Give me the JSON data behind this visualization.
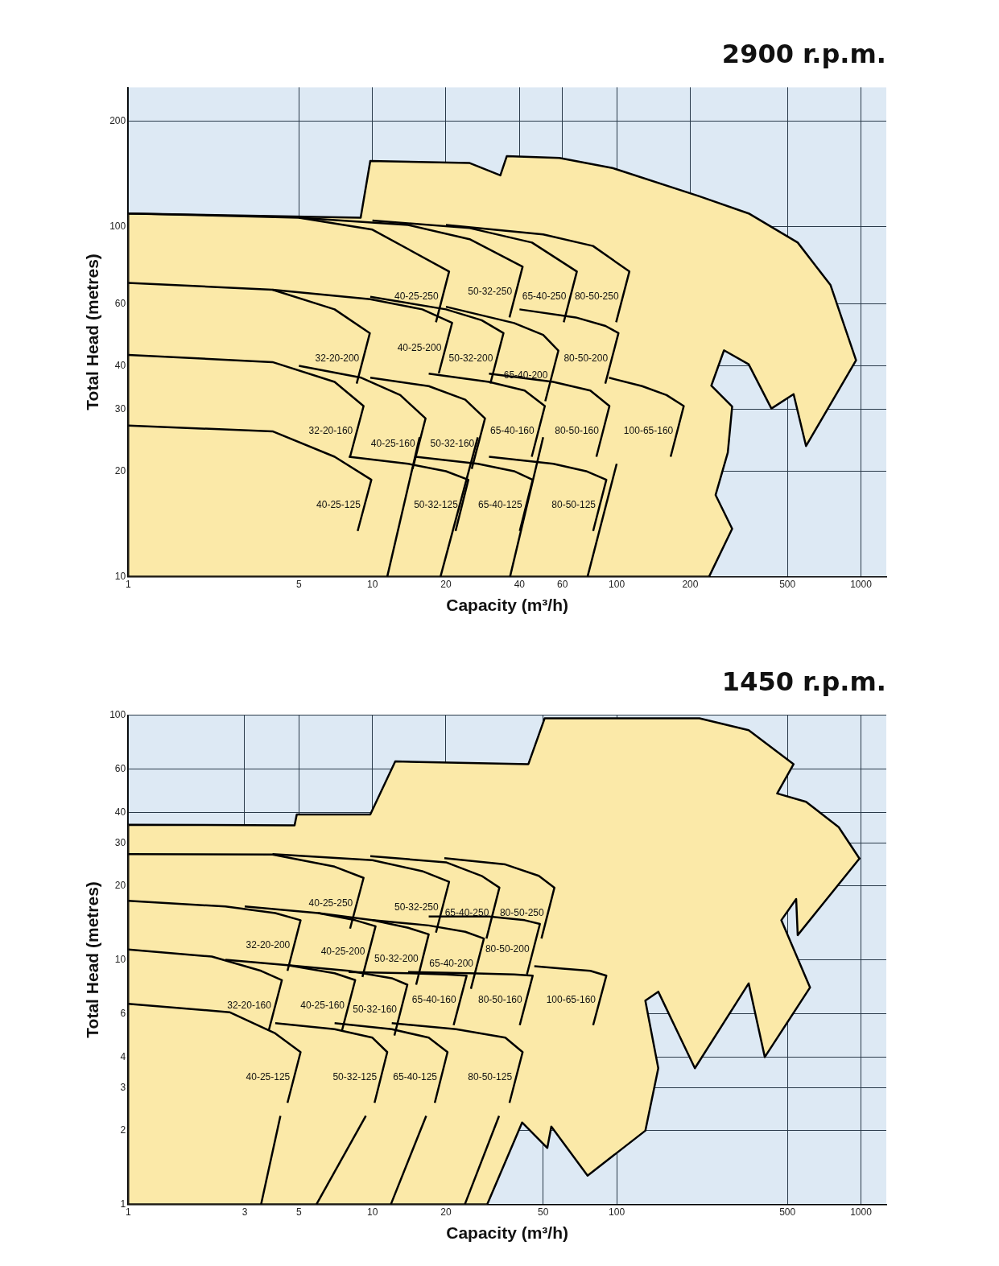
{
  "chart_data": [
    {
      "type": "line",
      "title": "2900 r.p.m.",
      "xlabel": "Capacity (m³/h)",
      "ylabel": "Total Head (metres)",
      "log": "xy",
      "xlim": [
        1,
        1270
      ],
      "ylim": [
        10,
        250
      ],
      "xticks": [
        1,
        5,
        10,
        20,
        40,
        60,
        100,
        200,
        500,
        1000
      ],
      "yticks": [
        10,
        20,
        30,
        40,
        60,
        100,
        200
      ],
      "grid": true,
      "legend": false,
      "marker": "none",
      "line_style": "solid",
      "series": [
        {
          "type": "area",
          "color": "#fbe9a8",
          "x": [
            1,
            8.95,
            9.8,
            24.9,
            33.4,
            35.5,
            58.3,
            96,
            218,
            347,
            551,
            751,
            955,
            596,
            530,
            430,
            347,
            275,
            244,
            297,
            285,
            254,
            297,
            239,
            1,
            1
          ],
          "values": [
            109,
            106,
            154,
            152,
            140,
            159,
            157,
            147,
            122,
            109,
            90,
            68,
            41.5,
            23.6,
            33.2,
            30.2,
            40.4,
            44.3,
            35.1,
            30.6,
            22.6,
            17.1,
            13.7,
            10,
            10,
            109
          ]
        },
        {
          "name": "40-25-250",
          "color": "#000000",
          "x": [
            1,
            5,
            10,
            20.6,
            18.2
          ],
          "values": [
            109,
            106,
            98,
            74.4,
            53.3
          ]
        },
        {
          "name": "50-32-250",
          "color": "#000000",
          "x": [
            5,
            14,
            25,
            41.2,
            36.4
          ],
          "values": [
            106,
            101,
            92,
            76.8,
            55
          ]
        },
        {
          "name": "65-40-250",
          "color": "#000000",
          "x": [
            10,
            25,
            45,
            68.7,
            60.7
          ],
          "values": [
            104,
            99,
            90,
            74.4,
            53.3
          ]
        },
        {
          "name": "80-50-250",
          "color": "#000000",
          "x": [
            20,
            50,
            80,
            112.7,
            99.5
          ],
          "values": [
            101,
            95,
            88,
            74.4,
            53.3
          ]
        },
        {
          "name": "32-20-200",
          "color": "#000000",
          "x": [
            1,
            3.9,
            7,
            9.76,
            8.62
          ],
          "values": [
            69,
            66,
            58,
            49.6,
            35.6
          ]
        },
        {
          "name": "40-25-200",
          "color": "#000000",
          "x": [
            3.9,
            9.8,
            16,
            21.2,
            18.7
          ],
          "values": [
            66,
            62,
            58,
            53.1,
            38.1
          ]
        },
        {
          "name": "50-32-200",
          "color": "#000000",
          "x": [
            9.8,
            20,
            28,
            34.4,
            30.4
          ],
          "values": [
            63,
            58,
            54,
            49.6,
            35.6
          ]
        },
        {
          "name": "65-40-200",
          "color": "#000000",
          "x": [
            20,
            38,
            50,
            57.7,
            51
          ],
          "values": [
            59,
            53,
            49,
            44.2,
            31.7
          ]
        },
        {
          "name": "80-50-200",
          "color": "#000000",
          "x": [
            40,
            68,
            90,
            101.7,
            89.8
          ],
          "values": [
            58,
            55,
            52,
            49.6,
            35.6
          ]
        },
        {
          "name": "32-20-160",
          "color": "#000000",
          "x": [
            1,
            3.9,
            7,
            9.2,
            8.1
          ],
          "values": [
            43,
            41,
            36,
            30.7,
            22
          ]
        },
        {
          "name": "40-25-160",
          "color": "#000000",
          "x": [
            5,
            9,
            13,
            16.5,
            14.6
          ],
          "values": [
            40,
            37,
            33,
            28.3,
            20.3
          ]
        },
        {
          "name": "50-32-160",
          "color": "#000000",
          "x": [
            9.8,
            17,
            24,
            28.9,
            25.5
          ],
          "values": [
            37,
            35,
            32,
            28.3,
            20.3
          ]
        },
        {
          "name": "65-40-160",
          "color": "#000000",
          "x": [
            17,
            30,
            42,
            50.8,
            44.9
          ],
          "values": [
            38,
            36,
            34,
            30.7,
            22
          ]
        },
        {
          "name": "80-50-160",
          "color": "#000000",
          "x": [
            30,
            55,
            78,
            93.4,
            82.6
          ],
          "values": [
            38,
            36,
            34,
            30.7,
            22
          ]
        },
        {
          "name": "100-65-160",
          "color": "#000000",
          "x": [
            93,
            127,
            160,
            188.2,
            166.3
          ],
          "values": [
            37,
            35,
            33,
            30.7,
            22
          ]
        },
        {
          "name": "40-25-125",
          "color": "#000000",
          "x": [
            1,
            3.9,
            7,
            9.9,
            8.7
          ],
          "values": [
            27,
            26,
            22,
            18.9,
            13.5
          ]
        },
        {
          "name": "50-32-125",
          "color": "#000000",
          "x": [
            8,
            14,
            20,
            24.7,
            21.9
          ],
          "values": [
            22,
            21,
            20,
            18.9,
            13.5
          ]
        },
        {
          "name": "65-40-125",
          "color": "#000000",
          "x": [
            15,
            27,
            38,
            45.3,
            40.1
          ],
          "values": [
            22,
            21,
            20,
            18.9,
            13.5
          ]
        },
        {
          "name": "80-50-125",
          "color": "#000000",
          "x": [
            30,
            55,
            75,
            90.7,
            80.1
          ],
          "values": [
            22,
            21,
            20,
            18.9,
            13.5
          ]
        },
        {
          "color": "#000000",
          "x": [
            11.5,
            15.6
          ],
          "values": [
            10,
            25
          ]
        },
        {
          "color": "#000000",
          "x": [
            19,
            27
          ],
          "values": [
            10,
            25
          ]
        },
        {
          "color": "#000000",
          "x": [
            36.6,
            50
          ],
          "values": [
            10,
            25
          ]
        },
        {
          "color": "#000000",
          "x": [
            76,
            100
          ],
          "values": [
            10,
            21
          ]
        }
      ]
    },
    {
      "type": "line",
      "title": "1450 r.p.m.",
      "xlabel": "Capacity (m³/h)",
      "ylabel": "Total Head (metres)",
      "log": "xy",
      "xlim": [
        1,
        1270
      ],
      "ylim": [
        1,
        100
      ],
      "xticks": [
        1,
        3,
        5,
        10,
        20,
        50,
        100,
        500,
        1000
      ],
      "yticks": [
        1,
        2,
        3,
        4,
        6,
        10,
        20,
        30,
        40,
        60,
        100
      ],
      "grid": true,
      "legend": false,
      "marker": "none",
      "line_style": "solid",
      "series": [
        {
          "type": "area",
          "color": "#fbe9a8",
          "x": [
            1,
            4.8,
            4.9,
            9.8,
            12.4,
            43.5,
            50.7,
            218,
            347,
            530,
            454,
            596,
            811,
            986,
            551,
            543,
            472,
            619,
            404,
            347,
            209,
            148,
            131,
            148,
            131,
            76,
            54,
            52,
            41,
            29.5,
            1,
            1
          ],
          "values": [
            35.6,
            35.4,
            39.2,
            39.2,
            64.6,
            63,
            96.9,
            96.9,
            86.7,
            63,
            47.8,
            44.2,
            34.8,
            25.9,
            12.6,
            17.7,
            14.5,
            7.7,
            4,
            8,
            3.6,
            7.4,
            6.8,
            3.6,
            2,
            1.31,
            2.08,
            1.7,
            2.16,
            1,
            1,
            35.6
          ]
        },
        {
          "name": "40-25-250",
          "color": "#000000",
          "x": [
            1,
            3.9,
            7,
            9.2,
            8.1
          ],
          "values": [
            27,
            26.9,
            24,
            21.6,
            13.4
          ]
        },
        {
          "name": "50-32-250",
          "color": "#000000",
          "x": [
            3.9,
            10,
            16,
            20.6,
            18.2
          ],
          "values": [
            27,
            25.5,
            23,
            20.8,
            12.9
          ]
        },
        {
          "name": "65-40-250",
          "color": "#000000",
          "x": [
            9.8,
            20,
            28,
            33.1,
            29.3
          ],
          "values": [
            26.5,
            25,
            22,
            19.7,
            12.2
          ]
        },
        {
          "name": "80-50-250",
          "color": "#000000",
          "x": [
            19.7,
            35,
            48,
            55.6,
            49.2
          ],
          "values": [
            26,
            24.5,
            22,
            19.7,
            12.2
          ]
        },
        {
          "name": "32-20-200",
          "color": "#000000",
          "x": [
            1,
            2.5,
            4,
            5.08,
            4.49
          ],
          "values": [
            17.4,
            16.5,
            15.5,
            14.5,
            9
          ]
        },
        {
          "name": "40-25-200",
          "color": "#000000",
          "x": [
            3,
            6,
            8.5,
            10.3,
            9.1
          ],
          "values": [
            16.5,
            15.5,
            14.5,
            13.7,
            8.5
          ]
        },
        {
          "name": "50-32-200",
          "color": "#000000",
          "x": [
            6,
            10,
            14,
            17,
            15.1
          ],
          "values": [
            15.5,
            14.5,
            13.5,
            12.7,
            7.9
          ]
        },
        {
          "name": "65-40-200",
          "color": "#000000",
          "x": [
            10,
            17,
            24,
            28.6,
            25.3
          ],
          "values": [
            14.5,
            13.8,
            13,
            12.2,
            7.6
          ]
        },
        {
          "name": "80-50-200",
          "color": "#000000",
          "x": [
            17,
            30,
            42,
            48.5,
            42.9
          ],
          "values": [
            15,
            15,
            14.5,
            14,
            8.7
          ]
        },
        {
          "name": "32-20-160",
          "color": "#000000",
          "x": [
            1,
            2.2,
            3.5,
            4.26,
            3.76
          ],
          "values": [
            11,
            10.3,
            9,
            8.25,
            5.12
          ]
        },
        {
          "name": "40-25-160",
          "color": "#000000",
          "x": [
            2.5,
            4.5,
            7,
            8.5,
            7.5
          ],
          "values": [
            10,
            9.5,
            8.8,
            8.25,
            5.12
          ]
        },
        {
          "name": "50-32-160",
          "color": "#000000",
          "x": [
            4.5,
            8,
            12,
            13.9,
            12.3
          ],
          "values": [
            9.5,
            9,
            8.4,
            7.9,
            4.9
          ]
        },
        {
          "name": "65-40-160",
          "color": "#000000",
          "x": [
            8,
            14,
            20,
            24.3,
            21.5
          ],
          "values": [
            8.9,
            8.8,
            8.7,
            8.6,
            5.4
          ]
        },
        {
          "name": "80-50-160",
          "color": "#000000",
          "x": [
            14,
            25,
            38,
            45.3,
            40.1
          ],
          "values": [
            8.9,
            8.8,
            8.7,
            8.6,
            5.4
          ]
        },
        {
          "name": "100-65-160",
          "color": "#000000",
          "x": [
            46,
            60,
            78,
            90.7,
            80.1
          ],
          "values": [
            9.4,
            9.2,
            9,
            8.6,
            5.4
          ]
        },
        {
          "name": "40-25-125",
          "color": "#000000",
          "x": [
            1,
            2.6,
            4,
            5.08,
            4.49
          ],
          "values": [
            6.6,
            6.1,
            5,
            4.19,
            2.6
          ]
        },
        {
          "name": "50-32-125",
          "color": "#000000",
          "x": [
            4,
            7,
            10,
            11.5,
            10.2
          ],
          "values": [
            5.5,
            5.2,
            4.8,
            4.19,
            2.6
          ]
        },
        {
          "name": "65-40-125",
          "color": "#000000",
          "x": [
            7,
            12,
            17,
            20.3,
            18
          ],
          "values": [
            5.5,
            5.2,
            4.8,
            4.19,
            2.6
          ]
        },
        {
          "name": "80-50-125",
          "color": "#000000",
          "x": [
            12,
            22,
            35,
            41.2,
            36.4
          ],
          "values": [
            5.5,
            5.2,
            4.8,
            4.19,
            2.6
          ]
        },
        {
          "color": "#000000",
          "x": [
            3.5,
            4.2
          ],
          "values": [
            1,
            2.3
          ]
        },
        {
          "color": "#000000",
          "x": [
            5.9,
            9.4
          ],
          "values": [
            1,
            2.3
          ]
        },
        {
          "color": "#000000",
          "x": [
            11.9,
            16.6
          ],
          "values": [
            1,
            2.3
          ]
        },
        {
          "color": "#000000",
          "x": [
            23.9,
            33
          ],
          "values": [
            1,
            2.3
          ]
        }
      ]
    }
  ]
}
